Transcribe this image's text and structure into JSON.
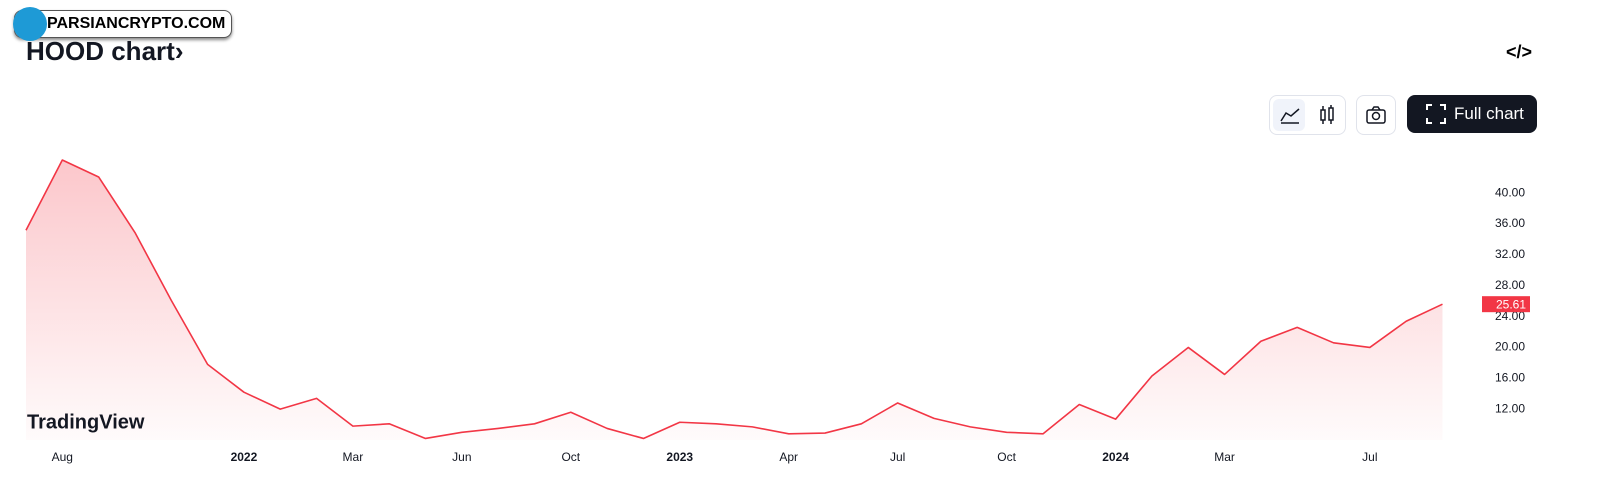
{
  "chart_data": {
    "type": "area",
    "title": "HOOD chart",
    "title_arrow": "›",
    "categories": [
      null,
      "Aug",
      null,
      null,
      null,
      null,
      "2022",
      null,
      null,
      "Mar",
      null,
      null,
      "Jun",
      null,
      null,
      "Oct",
      null,
      null,
      "2023",
      null,
      null,
      "Apr",
      null,
      null,
      "Jul",
      null,
      null,
      "Oct",
      null,
      null,
      "2024",
      null,
      null,
      "Mar",
      null,
      null,
      null,
      "Jul",
      null,
      null
    ],
    "values": [
      35.2,
      44.3,
      42.1,
      34.9,
      26.1,
      17.8,
      14.2,
      12.0,
      13.4,
      9.8,
      10.1,
      8.2,
      9.0,
      9.5,
      10.1,
      11.6,
      9.5,
      8.2,
      10.3,
      10.1,
      9.7,
      8.8,
      8.9,
      10.1,
      12.8,
      10.8,
      9.7,
      9.0,
      8.8,
      12.6,
      10.7,
      16.3,
      20.0,
      16.5,
      20.8,
      22.6,
      20.6,
      20.0,
      23.4,
      25.61
    ],
    "color": "#f23645",
    "ylim": [
      8,
      45.6
    ],
    "yticks": [
      {
        "value": 12,
        "label": "12.00"
      },
      {
        "value": 16,
        "label": "16.00"
      },
      {
        "value": 20,
        "label": "20.00"
      },
      {
        "value": 24,
        "label": "24.00"
      },
      {
        "value": 28,
        "label": "28.00"
      },
      {
        "value": 32,
        "label": "32.00"
      },
      {
        "value": 36,
        "label": "36.00"
      },
      {
        "value": 40,
        "label": "40.00"
      }
    ],
    "last_value_marker": true
  },
  "ui": {
    "watermark": "PARSIANCRYPTO.COM",
    "embed_icon": "</>",
    "full_chart": "Full chart",
    "logo": "TradingView"
  }
}
